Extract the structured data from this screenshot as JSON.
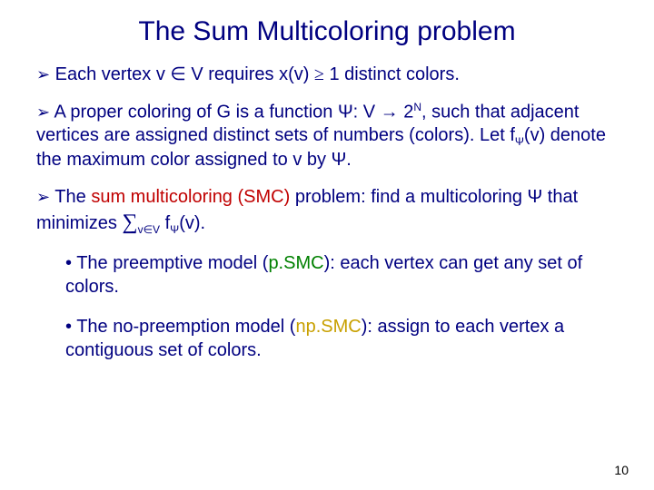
{
  "title": "The Sum Multicoloring problem",
  "bullets": {
    "b1_pre": "Each vertex v ",
    "b1_sym1": "∈",
    "b1_mid1": " V requires x(v) ",
    "b1_sym2": "≥",
    "b1_post": " 1 distinct colors.",
    "b2_pre": "A proper coloring of G is a function Ψ: V → 2",
    "b2_sup": "N",
    "b2_mid": ", such that adjacent vertices are assigned distinct sets of numbers (colors). Let f",
    "b2_sub1": "Ψ",
    "b2_post": "(v) denote the maximum color assigned to v by Ψ.",
    "b3_pre": "The ",
    "b3_smc": "sum multicoloring (SMC)",
    "b3_mid1": " problem: find a multicoloring Ψ that minimizes ",
    "b3_sum": "∑",
    "b3_sub1": "v∈V",
    "b3_mid2": " f",
    "b3_sub2": "Ψ",
    "b3_post": "(v)."
  },
  "subs": {
    "s1_pre": "The ",
    "s1_em": "preemptive",
    "s1_mid": " model (",
    "s1_tag": "p.SMC",
    "s1_post": "): each vertex can get any set of colors.",
    "s2_pre": "The ",
    "s2_em": "no-preemption",
    "s2_mid": " model (",
    "s2_tag": "np.SMC",
    "s2_post": "):  assign to each vertex a contiguous set of colors."
  },
  "glyphs": {
    "arrow": "➢",
    "dot": "•"
  },
  "page": "10",
  "style": {
    "text_color": "#000080",
    "smc_color": "#c00000",
    "psmc_color": "#008000",
    "npsmc_color": "#c8a000",
    "background": "#ffffff",
    "title_fontsize": 30,
    "body_fontsize": 20,
    "font_family": "Comic Sans MS"
  }
}
